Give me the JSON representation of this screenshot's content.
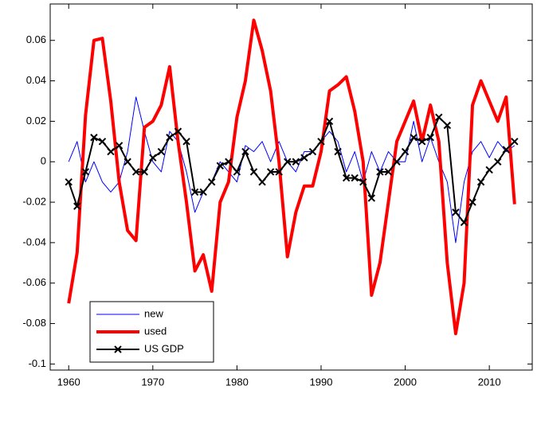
{
  "chart_data": {
    "type": "line",
    "x": [
      1960,
      1961,
      1962,
      1963,
      1964,
      1965,
      1966,
      1967,
      1968,
      1969,
      1970,
      1971,
      1972,
      1973,
      1974,
      1975,
      1976,
      1977,
      1978,
      1979,
      1980,
      1981,
      1982,
      1983,
      1984,
      1985,
      1986,
      1987,
      1988,
      1989,
      1990,
      1991,
      1992,
      1993,
      1994,
      1995,
      1996,
      1997,
      1998,
      1999,
      2000,
      2001,
      2002,
      2003,
      2004,
      2005,
      2006,
      2007,
      2008,
      2009,
      2010,
      2011,
      2012,
      2013
    ],
    "series": [
      {
        "name": "new",
        "color": "#0000ff",
        "line_width": 1,
        "values": [
          0.0,
          0.01,
          -0.01,
          0.0,
          -0.01,
          -0.015,
          -0.01,
          0.005,
          0.032,
          0.015,
          0.0,
          -0.005,
          0.015,
          0.01,
          -0.005,
          -0.025,
          -0.015,
          -0.01,
          0.0,
          -0.005,
          -0.01,
          0.008,
          0.005,
          0.01,
          0.0,
          0.01,
          0.0,
          -0.005,
          0.005,
          0.005,
          0.01,
          0.015,
          0.01,
          -0.005,
          0.005,
          -0.01,
          0.005,
          -0.005,
          0.005,
          0.0,
          0.0,
          0.02,
          0.0,
          0.012,
          0.0,
          -0.01,
          -0.04,
          -0.01,
          0.005,
          0.01,
          0.002,
          0.01,
          0.005,
          0.008
        ]
      },
      {
        "name": "used",
        "color": "#ff0000",
        "line_width": 4,
        "values": [
          -0.07,
          -0.045,
          0.023,
          0.06,
          0.061,
          0.03,
          -0.01,
          -0.034,
          -0.039,
          0.017,
          0.02,
          0.028,
          0.047,
          0.01,
          -0.02,
          -0.054,
          -0.046,
          -0.064,
          -0.02,
          -0.01,
          0.022,
          0.04,
          0.07,
          0.055,
          0.035,
          0.0,
          -0.047,
          -0.025,
          -0.012,
          -0.012,
          0.005,
          0.035,
          0.038,
          0.042,
          0.025,
          0.0,
          -0.066,
          -0.05,
          -0.02,
          0.01,
          0.02,
          0.03,
          0.01,
          0.028,
          0.01,
          -0.05,
          -0.085,
          -0.06,
          0.028,
          0.04,
          0.03,
          0.02,
          0.032,
          -0.021
        ]
      },
      {
        "name": "US GDP",
        "color": "#000000",
        "line_width": 2,
        "marker": "x",
        "values": [
          -0.01,
          -0.022,
          -0.005,
          0.012,
          0.01,
          0.005,
          0.008,
          0.0,
          -0.005,
          -0.005,
          0.002,
          0.005,
          0.012,
          0.015,
          0.01,
          -0.015,
          -0.015,
          -0.01,
          -0.002,
          0.0,
          -0.005,
          0.005,
          -0.005,
          -0.01,
          -0.005,
          -0.005,
          0.0,
          0.0,
          0.002,
          0.005,
          0.01,
          0.02,
          0.005,
          -0.008,
          -0.008,
          -0.01,
          -0.018,
          -0.005,
          -0.005,
          0.0,
          0.005,
          0.012,
          0.01,
          0.012,
          0.022,
          0.018,
          -0.025,
          -0.03,
          -0.02,
          -0.01,
          -0.004,
          0.0,
          0.006,
          0.01
        ]
      }
    ],
    "xlim": [
      1957.8,
      2015.1
    ],
    "xticks": [
      1960,
      1970,
      1980,
      1990,
      2000,
      2010
    ],
    "ylim": [
      -0.103,
      0.078
    ],
    "yticks": [
      -0.1,
      -0.08,
      -0.06,
      -0.04,
      -0.02,
      0,
      0.02,
      0.04,
      0.06
    ],
    "grid": false,
    "legend": "southwest"
  }
}
